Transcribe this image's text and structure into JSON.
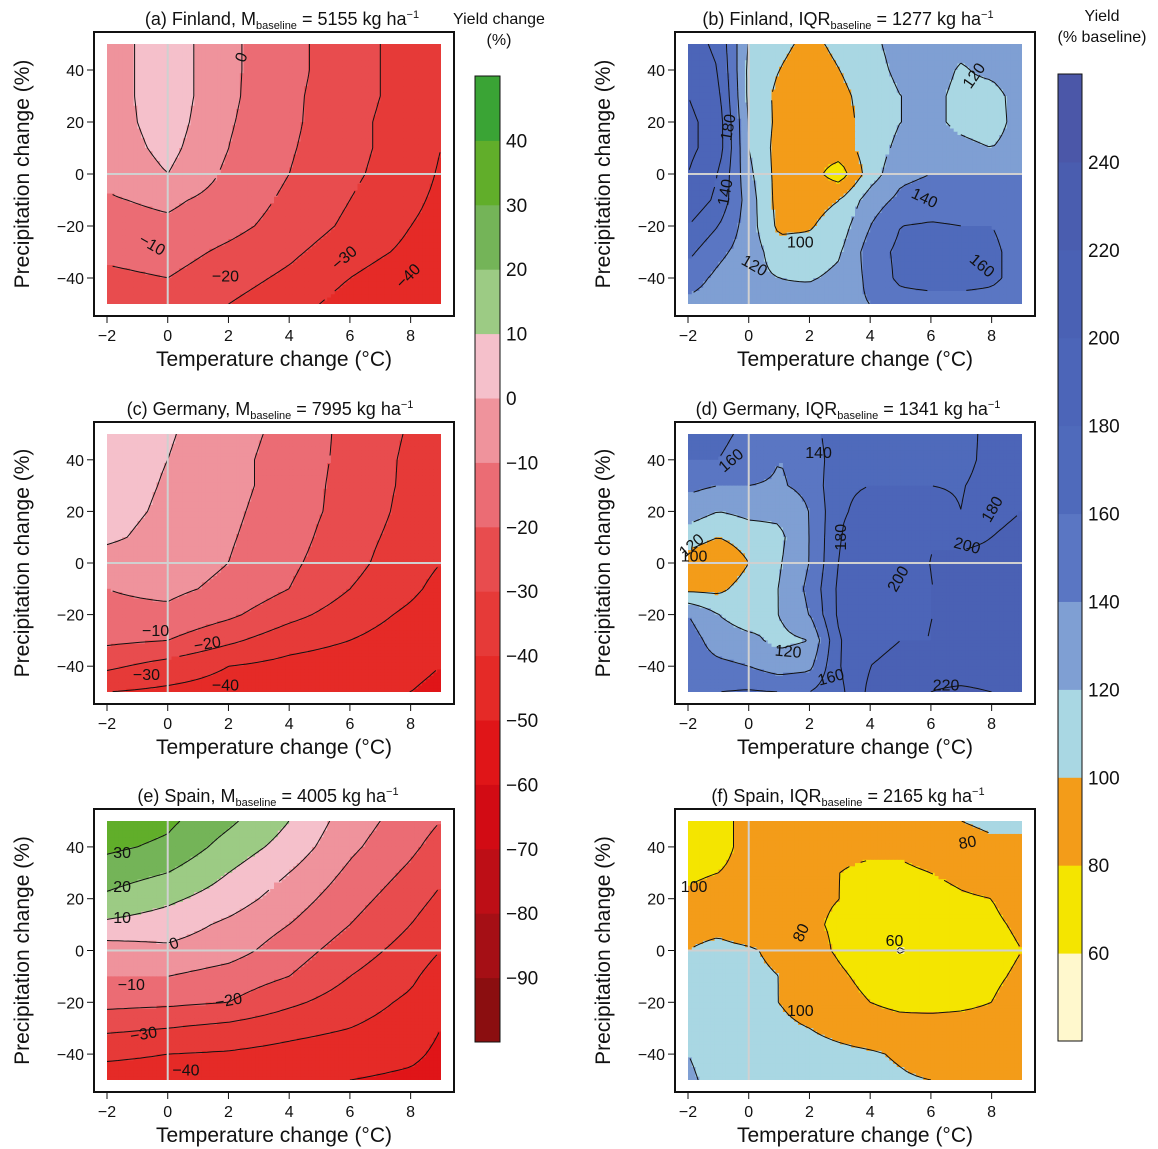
{
  "chart_data": [
    {
      "type": "contour",
      "id": "a",
      "title": "(a) Finland, M",
      "title_sub": "baseline",
      "title_rest": " = 5155 kg ha",
      "title_sup": "−1",
      "xlabel": "Temperature change (°C)",
      "ylabel": "Precipitation change (%)",
      "xlim": [
        -2,
        9
      ],
      "ylim": [
        -50,
        50
      ],
      "xticks": [
        -2,
        0,
        2,
        4,
        6,
        8
      ],
      "yticks": [
        -40,
        -20,
        0,
        20,
        40
      ],
      "scale": "change",
      "x": [
        -2,
        0,
        2,
        4,
        6,
        8,
        9
      ],
      "y": [
        -50,
        -40,
        -30,
        -20,
        -10,
        0,
        10,
        20,
        30,
        40,
        50
      ],
      "values": [
        [
          -28,
          -24,
          -30,
          -36,
          -44,
          -48,
          -50
        ],
        [
          -22,
          -20,
          -26,
          -32,
          -40,
          -46,
          -48
        ],
        [
          -18,
          -16,
          -22,
          -28,
          -36,
          -42,
          -45
        ],
        [
          -14,
          -12,
          -17,
          -24,
          -32,
          -40,
          -43
        ],
        [
          -11,
          -8,
          -14,
          -22,
          -30,
          -38,
          -42
        ],
        [
          -8,
          0,
          -12,
          -20,
          -28,
          -36,
          -41
        ],
        [
          -6,
          3,
          -10,
          -19,
          -27,
          -35,
          -40
        ],
        [
          -5,
          5,
          -9,
          -18,
          -27,
          -35,
          -40
        ],
        [
          -5,
          6,
          -8,
          -18,
          -26,
          -34,
          -39
        ],
        [
          -5,
          6,
          -8,
          -17,
          -26,
          -34,
          -39
        ],
        [
          -5,
          6,
          -8,
          -17,
          -26,
          -34,
          -39
        ]
      ],
      "labels": [
        "0",
        "−10",
        "−20",
        "−30",
        "−40"
      ]
    },
    {
      "type": "contour",
      "id": "b",
      "title": "(b) Finland, IQR",
      "title_sub": "baseline",
      "title_rest": " = 1277 kg ha",
      "title_sup": "−1",
      "xlabel": "Temperature change (°C)",
      "ylabel": "Precipitation change (%)",
      "xlim": [
        -2,
        9
      ],
      "ylim": [
        -50,
        50
      ],
      "xticks": [
        -2,
        0,
        2,
        4,
        6,
        8
      ],
      "yticks": [
        -40,
        -20,
        0,
        20,
        40
      ],
      "scale": "baseline",
      "x": [
        -2,
        -1,
        0,
        1,
        2,
        3,
        4,
        5,
        6,
        7,
        8,
        9
      ],
      "y": [
        -50,
        -40,
        -30,
        -20,
        -10,
        0,
        10,
        20,
        30,
        40,
        50
      ],
      "values": [
        [
          135,
          130,
          122,
          125,
          130,
          135,
          140,
          150,
          150,
          150,
          150,
          145
        ],
        [
          150,
          135,
          125,
          120,
          118,
          125,
          145,
          165,
          170,
          170,
          165,
          150
        ],
        [
          165,
          145,
          130,
          110,
          108,
          118,
          150,
          165,
          165,
          168,
          165,
          150
        ],
        [
          180,
          160,
          130,
          95,
          98,
          110,
          140,
          160,
          162,
          160,
          160,
          150
        ],
        [
          195,
          175,
          130,
          92,
          92,
          100,
          130,
          145,
          150,
          150,
          150,
          145
        ],
        [
          200,
          180,
          125,
          92,
          88,
          70,
          110,
          135,
          140,
          140,
          140,
          140
        ],
        [
          205,
          190,
          120,
          92,
          88,
          90,
          110,
          125,
          130,
          125,
          120,
          130
        ],
        [
          205,
          190,
          118,
          95,
          88,
          92,
          108,
          120,
          125,
          115,
          110,
          130
        ],
        [
          200,
          185,
          115,
          95,
          88,
          95,
          108,
          120,
          125,
          115,
          112,
          130
        ],
        [
          195,
          180,
          115,
          100,
          90,
          100,
          112,
          125,
          128,
          118,
          125,
          135
        ],
        [
          190,
          175,
          118,
          105,
          95,
          105,
          115,
          128,
          130,
          125,
          130,
          138
        ]
      ],
      "labels": [
        "180",
        "140",
        "100",
        "120",
        "140",
        "160",
        "120"
      ]
    },
    {
      "type": "contour",
      "id": "c",
      "title": "(c) Germany, M",
      "title_sub": "baseline",
      "title_rest": " = 7995 kg ha",
      "title_sup": "−1",
      "xlabel": "Temperature change (°C)",
      "ylabel": "Precipitation change (%)",
      "xlim": [
        -2,
        9
      ],
      "ylim": [
        -50,
        50
      ],
      "xticks": [
        -2,
        0,
        2,
        4,
        6,
        8
      ],
      "yticks": [
        -40,
        -20,
        0,
        20,
        40
      ],
      "scale": "change",
      "x": [
        -2,
        0,
        2,
        4,
        6,
        8,
        9
      ],
      "y": [
        -50,
        -40,
        -30,
        -20,
        -10,
        0,
        10,
        20,
        30,
        40,
        50
      ],
      "values": [
        [
          -40,
          -42,
          -44,
          -46,
          -48,
          -50,
          -52
        ],
        [
          -28,
          -34,
          -40,
          -43,
          -45,
          -48,
          -50
        ],
        [
          -18,
          -20,
          -28,
          -36,
          -40,
          -45,
          -48
        ],
        [
          -12,
          -12,
          -18,
          -27,
          -35,
          -42,
          -46
        ],
        [
          -10,
          -8,
          -12,
          -20,
          -30,
          -38,
          -43
        ],
        [
          -5,
          -6,
          -10,
          -18,
          -27,
          -36,
          -40
        ],
        [
          2,
          -4,
          -9,
          -16,
          -26,
          -34,
          -40
        ],
        [
          4,
          -2,
          -8,
          -15,
          -24,
          -33,
          -40
        ],
        [
          5,
          -1,
          -7,
          -14,
          -24,
          -32,
          -39
        ],
        [
          5,
          0,
          -7,
          -14,
          -23,
          -32,
          -39
        ],
        [
          5,
          1,
          -6,
          -13,
          -23,
          -31,
          -39
        ]
      ],
      "labels": [
        "−10",
        "−20",
        "−30",
        "−40"
      ]
    },
    {
      "type": "contour",
      "id": "d",
      "title": "(d) Germany, IQR",
      "title_sub": "baseline",
      "title_rest": " = 1341 kg ha",
      "title_sup": "−1",
      "xlabel": "Temperature change (°C)",
      "ylabel": "Precipitation change (%)",
      "xlim": [
        -2,
        9
      ],
      "ylim": [
        -50,
        50
      ],
      "xticks": [
        -2,
        0,
        2,
        4,
        6,
        8
      ],
      "yticks": [
        -40,
        -20,
        0,
        20,
        40
      ],
      "scale": "baseline",
      "x": [
        -2,
        -1,
        0,
        1,
        2,
        3,
        4,
        5,
        6,
        7,
        8,
        9
      ],
      "y": [
        -50,
        -40,
        -30,
        -20,
        -10,
        0,
        10,
        20,
        30,
        40,
        50
      ],
      "values": [
        [
          160,
          160,
          162,
          160,
          160,
          175,
          205,
          215,
          220,
          225,
          220,
          215
        ],
        [
          150,
          145,
          140,
          130,
          135,
          180,
          200,
          205,
          210,
          205,
          205,
          205
        ],
        [
          150,
          130,
          125,
          115,
          120,
          180,
          195,
          200,
          200,
          210,
          205,
          205
        ],
        [
          140,
          120,
          110,
          120,
          140,
          185,
          195,
          195,
          200,
          200,
          200,
          200
        ],
        [
          95,
          95,
          110,
          120,
          145,
          185,
          195,
          195,
          200,
          200,
          205,
          205
        ],
        [
          90,
          80,
          100,
          118,
          140,
          182,
          195,
          198,
          200,
          205,
          205,
          210
        ],
        [
          110,
          100,
          110,
          115,
          140,
          180,
          190,
          195,
          200,
          195,
          200,
          205
        ],
        [
          130,
          120,
          125,
          125,
          140,
          178,
          185,
          190,
          190,
          180,
          195,
          200
        ],
        [
          145,
          140,
          140,
          138,
          145,
          178,
          180,
          180,
          180,
          178,
          192,
          190
        ],
        [
          160,
          160,
          150,
          140,
          145,
          175,
          175,
          178,
          175,
          170,
          190,
          185
        ],
        [
          165,
          165,
          155,
          145,
          150,
          175,
          172,
          175,
          172,
          168,
          190,
          180
        ]
      ],
      "labels": [
        "160",
        "140",
        "180",
        "120",
        "100",
        "200",
        "180",
        "200",
        "120",
        "160",
        "220"
      ]
    },
    {
      "type": "contour",
      "id": "e",
      "title": "(e) Spain, M",
      "title_sub": "baseline",
      "title_rest": " = 4005 kg ha",
      "title_sup": "−1",
      "xlabel": "Temperature change (°C)",
      "ylabel": "Precipitation change (%)",
      "xlim": [
        -2,
        9
      ],
      "ylim": [
        -50,
        50
      ],
      "xticks": [
        -2,
        0,
        2,
        4,
        6,
        8
      ],
      "yticks": [
        -40,
        -20,
        0,
        20,
        40
      ],
      "scale": "change",
      "x": [
        -2,
        0,
        2,
        4,
        6,
        8,
        9
      ],
      "y": [
        -50,
        -40,
        -30,
        -20,
        -10,
        0,
        10,
        20,
        30,
        40,
        50
      ],
      "values": [
        [
          -45,
          -45,
          -46,
          -48,
          -50,
          -52,
          -54
        ],
        [
          -38,
          -40,
          -41,
          -43,
          -45,
          -48,
          -52
        ],
        [
          -28,
          -30,
          -33,
          -37,
          -40,
          -45,
          -50
        ],
        [
          -17,
          -18,
          -20,
          -28,
          -35,
          -42,
          -48
        ],
        [
          -10,
          -10,
          -14,
          -20,
          -30,
          -38,
          -45
        ],
        [
          -5,
          -2,
          -6,
          -15,
          -25,
          -34,
          -40
        ],
        [
          8,
          5,
          -2,
          -10,
          -20,
          -30,
          -36
        ],
        [
          18,
          12,
          5,
          -5,
          -16,
          -26,
          -32
        ],
        [
          25,
          20,
          10,
          0,
          -12,
          -22,
          -28
        ],
        [
          32,
          28,
          16,
          6,
          -8,
          -18,
          -24
        ],
        [
          36,
          32,
          22,
          10,
          -5,
          -15,
          -20
        ]
      ],
      "labels": [
        "30",
        "20",
        "10",
        "0",
        "−10",
        "−20",
        "−30",
        "−40"
      ]
    },
    {
      "type": "contour",
      "id": "f",
      "title": "(f) Spain, IQR",
      "title_sub": "baseline",
      "title_rest": " = 2165 kg ha",
      "title_sup": "−1",
      "xlabel": "Temperature change (°C)",
      "ylabel": "Precipitation change (%)",
      "xlim": [
        -2,
        9
      ],
      "ylim": [
        -50,
        50
      ],
      "xticks": [
        -2,
        0,
        2,
        4,
        6,
        8
      ],
      "yticks": [
        -40,
        -20,
        0,
        20,
        40
      ],
      "scale": "baseline",
      "x": [
        -2,
        -1,
        0,
        1,
        2,
        3,
        4,
        5,
        6,
        7,
        8,
        9
      ],
      "y": [
        -50,
        -40,
        -30,
        -20,
        -10,
        0,
        10,
        20,
        30,
        40,
        50
      ],
      "values": [
        [
          125,
          110,
          110,
          108,
          108,
          108,
          105,
          102,
          100,
          98,
          95,
          95
        ],
        [
          120,
          108,
          108,
          106,
          106,
          104,
          102,
          98,
          92,
          90,
          90,
          90
        ],
        [
          112,
          106,
          106,
          104,
          100,
          95,
          90,
          88,
          88,
          88,
          88,
          88
        ],
        [
          105,
          100,
          104,
          100,
          92,
          85,
          80,
          75,
          74,
          76,
          80,
          85
        ],
        [
          100,
          104,
          104,
          100,
          90,
          82,
          76,
          72,
          70,
          72,
          78,
          82
        ],
        [
          100,
          104,
          102,
          96,
          85,
          78,
          72,
          58,
          70,
          72,
          76,
          80
        ],
        [
          95,
          96,
          90,
          88,
          82,
          78,
          74,
          72,
          72,
          75,
          78,
          82
        ],
        [
          82,
          85,
          85,
          85,
          82,
          80,
          76,
          74,
          74,
          78,
          80,
          85
        ],
        [
          78,
          80,
          82,
          84,
          82,
          80,
          78,
          78,
          80,
          84,
          88,
          90
        ],
        [
          76,
          78,
          82,
          84,
          84,
          82,
          82,
          82,
          85,
          92,
          96,
          100
        ],
        [
          75,
          78,
          82,
          85,
          86,
          85,
          86,
          88,
          92,
          100,
          104,
          100
        ]
      ],
      "labels": [
        "100",
        "80",
        "80",
        "60",
        "100"
      ]
    }
  ],
  "colorbars": {
    "change": {
      "title_lines": [
        "Yield change",
        "(%)"
      ],
      "levels": [
        -100,
        -90,
        -80,
        -70,
        -60,
        -50,
        -40,
        -30,
        -20,
        -10,
        0,
        10,
        20,
        30,
        40,
        50
      ],
      "colors": [
        "#8b0e10",
        "#a50f15",
        "#bd0e16",
        "#d20b14",
        "#e01518",
        "#e52a27",
        "#e63a38",
        "#e84c4e",
        "#eb6c74",
        "#ef939c",
        "#f5c0cb",
        "#9ccb84",
        "#74b458",
        "#61ae2a",
        "#3aa435",
        "#089c3e"
      ],
      "tick_labels": [
        "−90",
        "−80",
        "−70",
        "−60",
        "−50",
        "−40",
        "−30",
        "−20",
        "−10",
        "0",
        "10",
        "20",
        "30",
        "40"
      ],
      "tick_values": [
        -90,
        -80,
        -70,
        -60,
        -50,
        -40,
        -30,
        -20,
        -10,
        0,
        10,
        20,
        30,
        40
      ]
    },
    "baseline": {
      "title_lines": [
        "Yield",
        "(% baseline)"
      ],
      "levels": [
        40,
        60,
        80,
        100,
        120,
        140,
        160,
        180,
        200,
        220,
        240,
        260
      ],
      "colors": [
        "#fff8cd",
        "#f4e500",
        "#f39c19",
        "#a9d7e3",
        "#7f9fd3",
        "#5a76c3",
        "#4f6abb",
        "#4c65b8",
        "#4a61b4",
        "#4a5daf",
        "#4b57a8"
      ],
      "tick_labels": [
        "60",
        "80",
        "100",
        "120",
        "140",
        "160",
        "180",
        "200",
        "220",
        "240"
      ],
      "tick_values": [
        60,
        80,
        100,
        120,
        140,
        160,
        180,
        200,
        220,
        240
      ]
    }
  }
}
